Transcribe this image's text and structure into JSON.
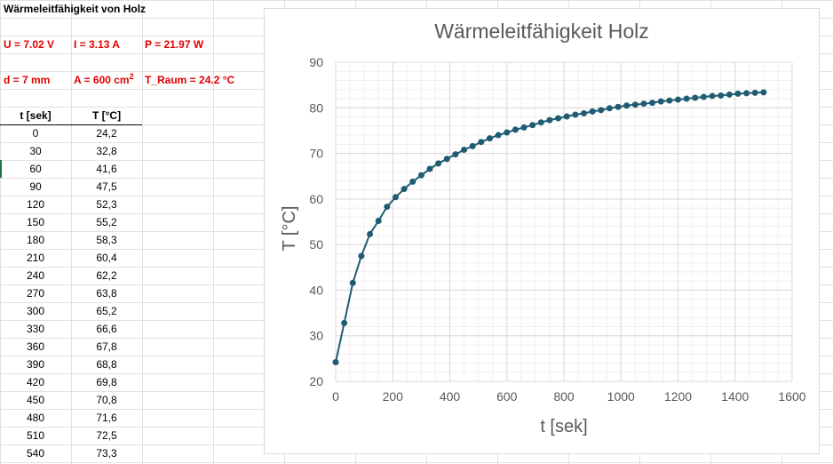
{
  "sheet": {
    "title": "Wärmeleitfähigkeit von Holz",
    "params": {
      "u": "U = 7.02 V",
      "i": "I = 3.13 A",
      "p": "P = 21.97 W",
      "d": "d = 7 mm",
      "a": "A = 600 cm",
      "a_sup": "2",
      "t_raum": "T_Raum = 24.2 °C"
    },
    "table": {
      "headers": [
        "t [sek]",
        "T [°C]"
      ],
      "rows": [
        [
          "0",
          "24,2"
        ],
        [
          "30",
          "32,8"
        ],
        [
          "60",
          "41,6"
        ],
        [
          "90",
          "47,5"
        ],
        [
          "120",
          "52,3"
        ],
        [
          "150",
          "55,2"
        ],
        [
          "180",
          "58,3"
        ],
        [
          "210",
          "60,4"
        ],
        [
          "240",
          "62,2"
        ],
        [
          "270",
          "63,8"
        ],
        [
          "300",
          "65,2"
        ],
        [
          "330",
          "66,6"
        ],
        [
          "360",
          "67,8"
        ],
        [
          "390",
          "68,8"
        ],
        [
          "420",
          "69,8"
        ],
        [
          "450",
          "70,8"
        ],
        [
          "480",
          "71,6"
        ],
        [
          "510",
          "72,5"
        ],
        [
          "540",
          "73,3"
        ]
      ]
    }
  },
  "chart_data": {
    "type": "line",
    "title": "Wärmeleitfähigkeit Holz",
    "xlabel": "t [sek]",
    "ylabel": "T [°C]",
    "xlim": [
      0,
      1600
    ],
    "ylim": [
      20,
      90
    ],
    "xticks": [
      "0",
      "200",
      "400",
      "600",
      "800",
      "1000",
      "1200",
      "1400",
      "1600"
    ],
    "yticks": [
      "20",
      "30",
      "40",
      "50",
      "60",
      "70",
      "80",
      "90"
    ],
    "grid": true,
    "color": "#1f5c73",
    "x": [
      0,
      30,
      60,
      90,
      120,
      150,
      180,
      210,
      240,
      270,
      300,
      330,
      360,
      390,
      420,
      450,
      480,
      510,
      540,
      570,
      600,
      630,
      660,
      690,
      720,
      750,
      780,
      810,
      840,
      870,
      900,
      930,
      960,
      990,
      1020,
      1050,
      1080,
      1110,
      1140,
      1170,
      1200,
      1230,
      1260,
      1290,
      1320,
      1350,
      1380,
      1410,
      1440,
      1470,
      1500
    ],
    "y": [
      24.2,
      32.8,
      41.6,
      47.5,
      52.3,
      55.2,
      58.3,
      60.4,
      62.2,
      63.8,
      65.2,
      66.6,
      67.8,
      68.8,
      69.8,
      70.8,
      71.6,
      72.5,
      73.3,
      74.0,
      74.6,
      75.2,
      75.7,
      76.2,
      76.8,
      77.3,
      77.7,
      78.1,
      78.5,
      78.8,
      79.2,
      79.5,
      79.9,
      80.2,
      80.5,
      80.7,
      80.9,
      81.1,
      81.4,
      81.6,
      81.8,
      82.0,
      82.2,
      82.4,
      82.6,
      82.7,
      82.9,
      83.1,
      83.2,
      83.3,
      83.4
    ]
  }
}
